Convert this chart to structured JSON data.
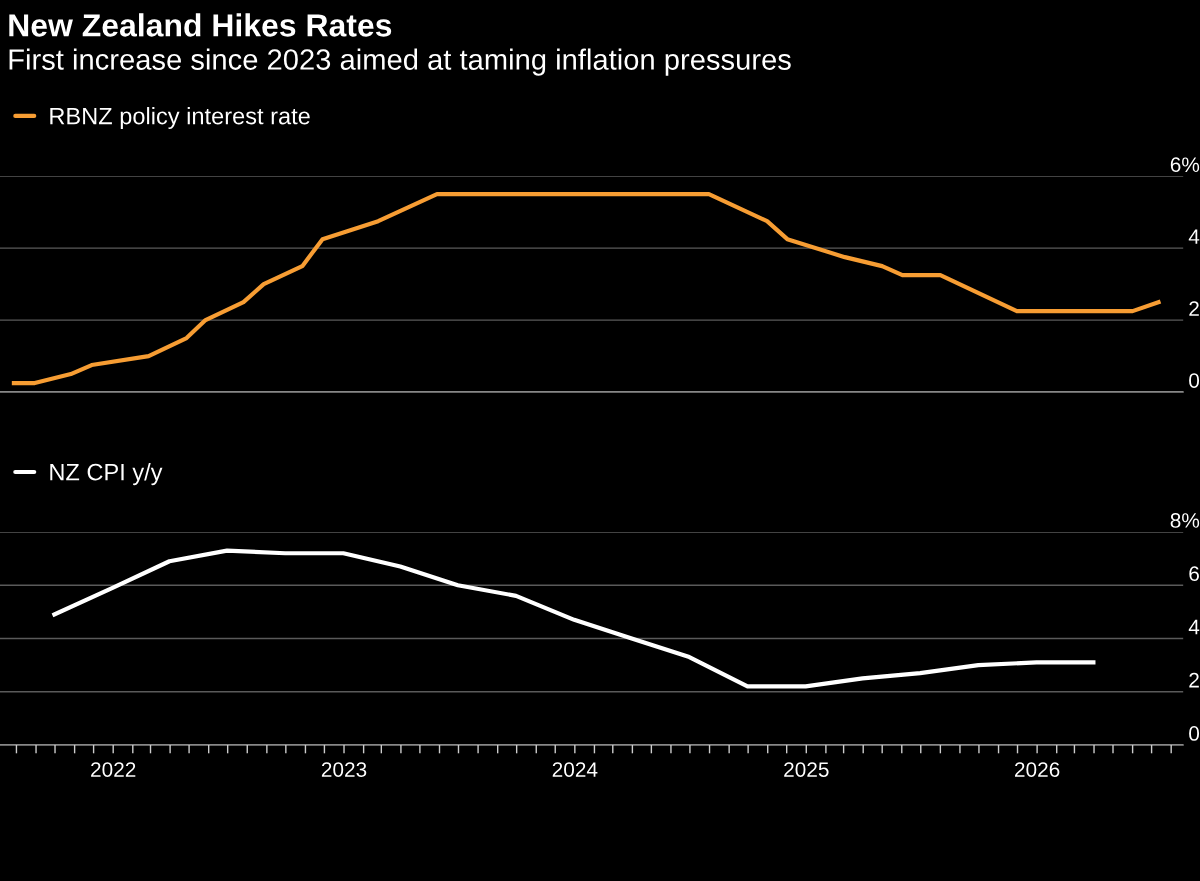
{
  "chart_data": [
    {
      "type": "line",
      "title": "New Zealand Hikes Rates",
      "subtitle": "First increase since 2023 aimed at taming inflation pressures",
      "series": [
        {
          "name": "RBNZ policy interest rate",
          "color": "#f79d33",
          "x": [
            "2021-07-28",
            "2021-08-30",
            "2021-10-26",
            "2021-11-28",
            "2022-02-26",
            "2022-04-27",
            "2022-05-27",
            "2022-07-26",
            "2022-08-27",
            "2022-10-27",
            "2022-11-28",
            "2023-02-24",
            "2023-05-28",
            "2024-07-31",
            "2024-10-31",
            "2024-12-02",
            "2025-03-03",
            "2025-05-01",
            "2025-06-02",
            "2025-08-01",
            "2025-11-30",
            "2026-06-01",
            "2026-07-12"
          ],
          "values": [
            0.25,
            0.25,
            0.5,
            0.75,
            1.0,
            1.5,
            2.0,
            2.5,
            3.0,
            3.5,
            4.25,
            4.75,
            5.5,
            5.5,
            4.75,
            4.25,
            3.75,
            3.5,
            3.25,
            3.25,
            2.25,
            2.25,
            2.5
          ]
        }
      ],
      "xlim": [
        "2021-07-06",
        "2026-08-20"
      ],
      "ylim": [
        0,
        6
      ],
      "yticks": [
        0,
        2,
        4,
        {
          "value": 6,
          "label": "6%"
        }
      ],
      "grid": "y",
      "legend": "top left",
      "tick_labels": "y"
    },
    {
      "type": "line",
      "series": [
        {
          "name": "NZ CPI y/y",
          "color": "#ffffff",
          "x": [
            "2021-09-30",
            "2021-12-31",
            "2022-03-31",
            "2022-06-30",
            "2022-09-30",
            "2022-12-31",
            "2023-03-31",
            "2023-06-30",
            "2023-09-30",
            "2023-12-31",
            "2024-03-31",
            "2024-06-30",
            "2024-09-30",
            "2024-12-31",
            "2025-03-31",
            "2025-06-30",
            "2025-09-30",
            "2025-12-31",
            "2026-03-31"
          ],
          "values": [
            4.9,
            5.9,
            6.9,
            7.3,
            7.2,
            7.2,
            6.7,
            6.0,
            5.6,
            4.7,
            4.0,
            3.3,
            2.2,
            2.2,
            2.5,
            2.7,
            3.0,
            3.1,
            3.1
          ]
        }
      ],
      "xlim": [
        "2021-07-06",
        "2026-08-20"
      ],
      "ylim": [
        0,
        8
      ],
      "yticks": [
        0,
        2,
        4,
        6,
        {
          "value": 8,
          "label": "8%"
        }
      ],
      "xticks": [
        {
          "value": "2021-08-01",
          "label": null
        },
        {
          "value": "2021-09-01",
          "label": null
        },
        {
          "value": "2021-10-01",
          "label": null
        },
        {
          "value": "2021-11-01",
          "label": null
        },
        {
          "value": "2021-12-01",
          "label": null
        },
        {
          "value": "2022-01-01",
          "label": "2022"
        },
        {
          "value": "2022-02-01",
          "label": null
        },
        {
          "value": "2022-03-01",
          "label": null
        },
        {
          "value": "2022-04-01",
          "label": null
        },
        {
          "value": "2022-05-01",
          "label": null
        },
        {
          "value": "2022-06-01",
          "label": null
        },
        {
          "value": "2022-07-01",
          "label": null
        },
        {
          "value": "2022-08-01",
          "label": null
        },
        {
          "value": "2022-09-01",
          "label": null
        },
        {
          "value": "2022-10-01",
          "label": null
        },
        {
          "value": "2022-11-01",
          "label": null
        },
        {
          "value": "2022-12-01",
          "label": null
        },
        {
          "value": "2023-01-01",
          "label": "2023"
        },
        {
          "value": "2023-02-01",
          "label": null
        },
        {
          "value": "2023-03-01",
          "label": null
        },
        {
          "value": "2023-04-01",
          "label": null
        },
        {
          "value": "2023-05-01",
          "label": null
        },
        {
          "value": "2023-06-01",
          "label": null
        },
        {
          "value": "2023-07-01",
          "label": null
        },
        {
          "value": "2023-08-01",
          "label": null
        },
        {
          "value": "2023-09-01",
          "label": null
        },
        {
          "value": "2023-10-01",
          "label": null
        },
        {
          "value": "2023-11-01",
          "label": null
        },
        {
          "value": "2023-12-01",
          "label": null
        },
        {
          "value": "2024-01-01",
          "label": "2024"
        },
        {
          "value": "2024-02-01",
          "label": null
        },
        {
          "value": "2024-03-01",
          "label": null
        },
        {
          "value": "2024-04-01",
          "label": null
        },
        {
          "value": "2024-05-01",
          "label": null
        },
        {
          "value": "2024-06-01",
          "label": null
        },
        {
          "value": "2024-07-01",
          "label": null
        },
        {
          "value": "2024-08-01",
          "label": null
        },
        {
          "value": "2024-09-01",
          "label": null
        },
        {
          "value": "2024-10-01",
          "label": null
        },
        {
          "value": "2024-11-01",
          "label": null
        },
        {
          "value": "2024-12-01",
          "label": null
        },
        {
          "value": "2025-01-01",
          "label": "2025"
        },
        {
          "value": "2025-02-01",
          "label": null
        },
        {
          "value": "2025-03-01",
          "label": null
        },
        {
          "value": "2025-04-01",
          "label": null
        },
        {
          "value": "2025-05-01",
          "label": null
        },
        {
          "value": "2025-06-01",
          "label": null
        },
        {
          "value": "2025-07-01",
          "label": null
        },
        {
          "value": "2025-08-01",
          "label": null
        },
        {
          "value": "2025-09-01",
          "label": null
        },
        {
          "value": "2025-10-01",
          "label": null
        },
        {
          "value": "2025-11-01",
          "label": null
        },
        {
          "value": "2025-12-01",
          "label": null
        },
        {
          "value": "2026-01-01",
          "label": "2026"
        },
        {
          "value": "2026-02-01",
          "label": null
        },
        {
          "value": "2026-03-01",
          "label": null
        },
        {
          "value": "2026-04-01",
          "label": null
        },
        {
          "value": "2026-05-01",
          "label": null
        },
        {
          "value": "2026-06-01",
          "label": null
        },
        {
          "value": "2026-07-01",
          "label": null
        },
        {
          "value": "2026-08-01",
          "label": null
        }
      ],
      "grid": "y",
      "legend": "top left"
    }
  ]
}
